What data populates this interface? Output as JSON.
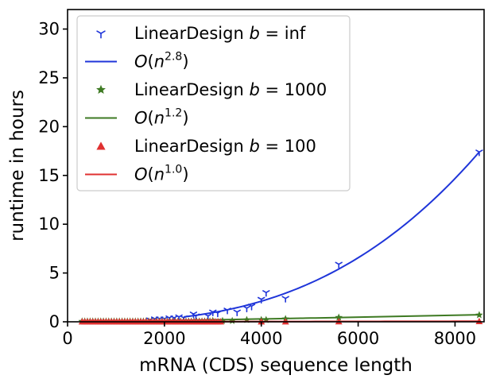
{
  "chart_data": {
    "type": "scatter",
    "title": "",
    "xlabel": "mRNA (CDS) sequence length",
    "ylabel": "runtime in hours",
    "xlim": [
      0,
      8600
    ],
    "ylim": [
      0,
      32
    ],
    "xticks": [
      0,
      2000,
      4000,
      6000,
      8000
    ],
    "yticks": [
      0,
      5,
      10,
      15,
      20,
      25,
      30
    ],
    "grid": false,
    "legend_position": "top-left",
    "series": [
      {
        "name": "LinearDesign b = inf",
        "legend_prefix": "LinearDesign",
        "legend_var": "b",
        "legend_suffix": " = inf",
        "kind": "points",
        "marker": "tri_down",
        "color": "#1f35d9",
        "x": [
          1700,
          1800,
          1900,
          2000,
          2100,
          2200,
          2300,
          2400,
          2600,
          2650,
          2900,
          3000,
          3100,
          3300,
          3500,
          3700,
          3800,
          4000,
          4100,
          4500,
          5600,
          8500
        ],
        "y": [
          0.2,
          0.3,
          0.3,
          0.3,
          0.4,
          0.4,
          0.5,
          0.4,
          0.8,
          0.6,
          0.6,
          1.0,
          0.9,
          1.2,
          1.0,
          1.4,
          1.6,
          2.3,
          3.0,
          2.4,
          5.9,
          17.4
        ]
      },
      {
        "name": "O(n^2.8)",
        "legend_base": "O",
        "legend_var": "n",
        "legend_exp": "2.8",
        "kind": "curve",
        "exponent": 2.8,
        "coef": 17.4,
        "x_ref": 8500,
        "x_range": [
          2400,
          8500
        ],
        "color": "#1f35d9"
      },
      {
        "name": "LinearDesign b = 1000",
        "legend_prefix": "LinearDesign",
        "legend_var": "b",
        "legend_suffix": " = 1000",
        "kind": "points",
        "marker": "star",
        "color": "#3e7a23",
        "x": [
          3000,
          3200,
          3400,
          3700,
          4000,
          4100,
          4500,
          5600,
          8500
        ],
        "y": [
          0.1,
          0.1,
          0.1,
          0.2,
          0.2,
          0.2,
          0.3,
          0.45,
          0.7
        ],
        "band": {
          "x_start": 300,
          "x_end": 3000,
          "y": 0.05
        }
      },
      {
        "name": "O(n^1.2)",
        "legend_base": "O",
        "legend_var": "n",
        "legend_exp": "1.2",
        "kind": "curve",
        "exponent": 1.2,
        "coef": 0.72,
        "x_ref": 8500,
        "x_range": [
          300,
          8500
        ],
        "color": "#3e7a23"
      },
      {
        "name": "LinearDesign b = 100",
        "legend_prefix": "LinearDesign",
        "legend_var": "b",
        "legend_suffix": " = 100",
        "kind": "points",
        "marker": "triangle_up",
        "color": "#e03030",
        "x": [
          4000,
          4500,
          5600,
          8500
        ],
        "y": [
          0.02,
          0.02,
          0.03,
          0.05
        ],
        "band": {
          "x_start": 300,
          "x_end": 3200,
          "y": 0.02
        }
      },
      {
        "name": "O(n^1.0)",
        "legend_base": "O",
        "legend_var": "n",
        "legend_exp": "1.0",
        "kind": "curve",
        "exponent": 1.0,
        "coef": 0.06,
        "x_ref": 8500,
        "x_range": [
          300,
          8500
        ],
        "color": "#e03030"
      }
    ]
  }
}
